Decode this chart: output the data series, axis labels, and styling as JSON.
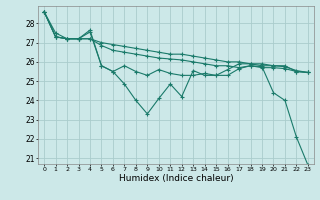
{
  "title": "",
  "xlabel": "Humidex (Indice chaleur)",
  "xlim": [
    -0.5,
    23.5
  ],
  "ylim": [
    20.7,
    28.9
  ],
  "xticks": [
    0,
    1,
    2,
    3,
    4,
    5,
    6,
    7,
    8,
    9,
    10,
    11,
    12,
    13,
    14,
    15,
    16,
    17,
    18,
    19,
    20,
    21,
    22,
    23
  ],
  "yticks": [
    21,
    22,
    23,
    24,
    25,
    26,
    27,
    28
  ],
  "bg_color": "#cce8e8",
  "grid_color": "#aacccc",
  "line_color": "#1a7a6a",
  "series": [
    [
      28.6,
      27.5,
      27.2,
      27.2,
      27.55,
      25.8,
      25.5,
      24.85,
      24.0,
      23.3,
      24.1,
      24.85,
      24.2,
      25.55,
      25.3,
      25.3,
      25.3,
      25.65,
      25.8,
      25.75,
      24.4,
      24.0,
      22.1,
      20.65
    ],
    [
      28.6,
      27.3,
      27.2,
      27.2,
      27.2,
      26.85,
      26.6,
      26.5,
      26.4,
      26.3,
      26.2,
      26.15,
      26.1,
      26.0,
      25.9,
      25.8,
      25.8,
      25.7,
      25.8,
      25.7,
      25.7,
      25.65,
      25.5,
      25.45
    ],
    [
      28.6,
      27.3,
      27.2,
      27.2,
      27.2,
      27.0,
      26.9,
      26.8,
      26.7,
      26.6,
      26.5,
      26.4,
      26.4,
      26.3,
      26.2,
      26.1,
      26.0,
      26.0,
      25.9,
      25.9,
      25.8,
      25.8,
      25.5,
      25.45
    ],
    [
      28.6,
      27.3,
      27.2,
      27.2,
      27.65,
      25.8,
      25.5,
      25.8,
      25.5,
      25.3,
      25.6,
      25.4,
      25.3,
      25.3,
      25.4,
      25.3,
      25.6,
      25.9,
      25.9,
      25.8,
      25.8,
      25.75,
      25.55,
      25.45
    ]
  ]
}
